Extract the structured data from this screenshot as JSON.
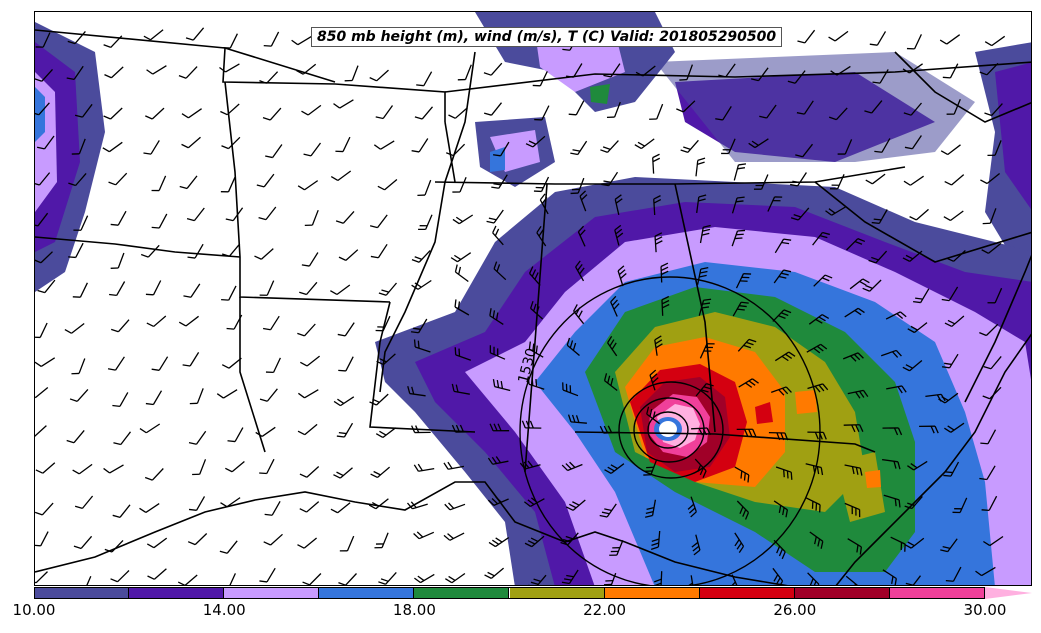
{
  "title": "850 mb height (m), wind (m/s), T (C) Valid: 201805290500",
  "contour_label": "1530",
  "colorbar": {
    "colors": [
      "#4b4b9c",
      "#5018a8",
      "#c89bff",
      "#3575dc",
      "#1f8a3c",
      "#a0a012",
      "#ff7a00",
      "#d40010",
      "#a00028",
      "#f0409a",
      "#ffb0e0"
    ],
    "tick_labels": [
      "10.00",
      "14.00",
      "18.00",
      "22.00",
      "26.00",
      "30.00"
    ]
  },
  "colors": {
    "state_lines": "#000000",
    "contour": "#000000",
    "barbs": "#000000"
  }
}
